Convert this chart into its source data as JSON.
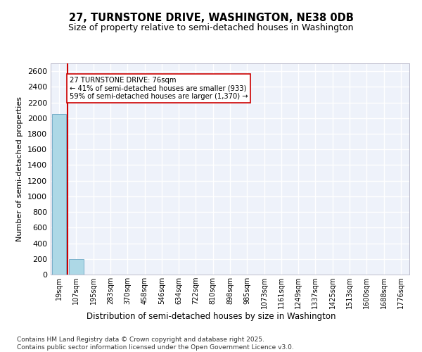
{
  "title": "27, TURNSTONE DRIVE, WASHINGTON, NE38 0DB",
  "subtitle": "Size of property relative to semi-detached houses in Washington",
  "xlabel": "Distribution of semi-detached houses by size in Washington",
  "ylabel": "Number of semi-detached properties",
  "bar_categories": [
    "19sqm",
    "107sqm",
    "195sqm",
    "283sqm",
    "370sqm",
    "458sqm",
    "546sqm",
    "634sqm",
    "722sqm",
    "810sqm",
    "898sqm",
    "985sqm",
    "1073sqm",
    "1161sqm",
    "1249sqm",
    "1337sqm",
    "1425sqm",
    "1513sqm",
    "1600sqm",
    "1688sqm",
    "1776sqm"
  ],
  "bar_values": [
    2050,
    200,
    0,
    0,
    0,
    0,
    0,
    0,
    0,
    0,
    0,
    0,
    0,
    0,
    0,
    0,
    0,
    0,
    0,
    0,
    0
  ],
  "bar_color": "#add8e6",
  "bar_edgecolor": "#5599bb",
  "property_line_x": 0.5,
  "property_line_color": "#cc0000",
  "annotation_title": "27 TURNSTONE DRIVE: 76sqm",
  "annotation_line1": "← 41% of semi-detached houses are smaller (933)",
  "annotation_line2": "59% of semi-detached houses are larger (1,370) →",
  "annotation_box_color": "#cc0000",
  "ylim": [
    0,
    2700
  ],
  "yticks": [
    0,
    200,
    400,
    600,
    800,
    1000,
    1200,
    1400,
    1600,
    1800,
    2000,
    2200,
    2400,
    2600
  ],
  "background_color": "#eef2fa",
  "grid_color": "#ffffff",
  "footer_line1": "Contains HM Land Registry data © Crown copyright and database right 2025.",
  "footer_line2": "Contains public sector information licensed under the Open Government Licence v3.0."
}
